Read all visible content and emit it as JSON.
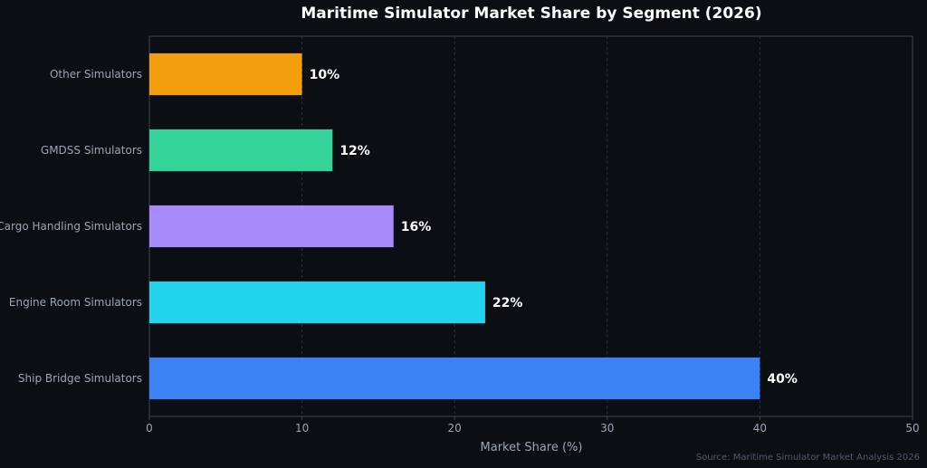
{
  "chart_data": {
    "type": "bar",
    "orientation": "horizontal",
    "title": "Maritime Simulator Market Share by Segment (2026)",
    "xlabel": "Market Share (%)",
    "ylabel": "",
    "xlim": [
      0,
      50
    ],
    "xticks": [
      0,
      10,
      20,
      30,
      40,
      50
    ],
    "grid": "vertical-dashed",
    "categories": [
      "Ship Bridge Simulators",
      "Engine Room Simulators",
      "Cargo Handling Simulators",
      "GMDSS Simulators",
      "Other Simulators"
    ],
    "values": [
      40,
      22,
      16,
      12,
      10
    ],
    "value_labels": [
      "40%",
      "22%",
      "16%",
      "12%",
      "10%"
    ],
    "colors": [
      "#3b82f6",
      "#22d3ee",
      "#a78bfa",
      "#34d399",
      "#f59e0b"
    ],
    "source": "Source: Maritime Simulator Market Analysis 2026"
  },
  "theme": {
    "background": "#0b0e13",
    "axis_color": "#3a4556",
    "grid_color": "#2a3342"
  }
}
